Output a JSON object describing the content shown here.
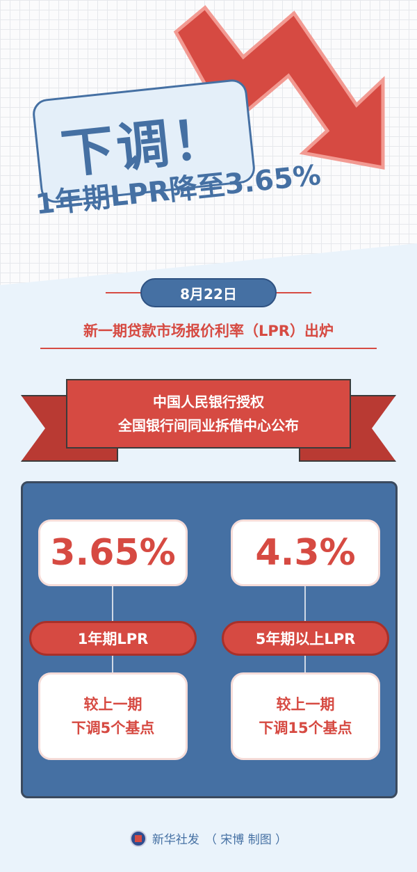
{
  "hero": {
    "title": "下调！",
    "headline": "1年期LPR降至3.65%"
  },
  "date": "8月22日",
  "subtitle": "新一期贷款市场报价利率（LPR）出炉",
  "ribbon": {
    "line1": "中国人民银行授权",
    "line2": "全国银行间同业拆借中心公布"
  },
  "rates": [
    {
      "value": "3.65%",
      "label": "1年期LPR",
      "change_line1": "较上一期",
      "change_line2": "下调5个基点"
    },
    {
      "value": "4.3%",
      "label": "5年期以上LPR",
      "change_line1": "较上一期",
      "change_line2": "下调15个基点"
    }
  ],
  "footer": {
    "source": "新华社发",
    "credit": "（ 宋博 制图 ）"
  },
  "colors": {
    "blue": "#4570a3",
    "red": "#d64a42",
    "background": "#eaf3fb"
  }
}
